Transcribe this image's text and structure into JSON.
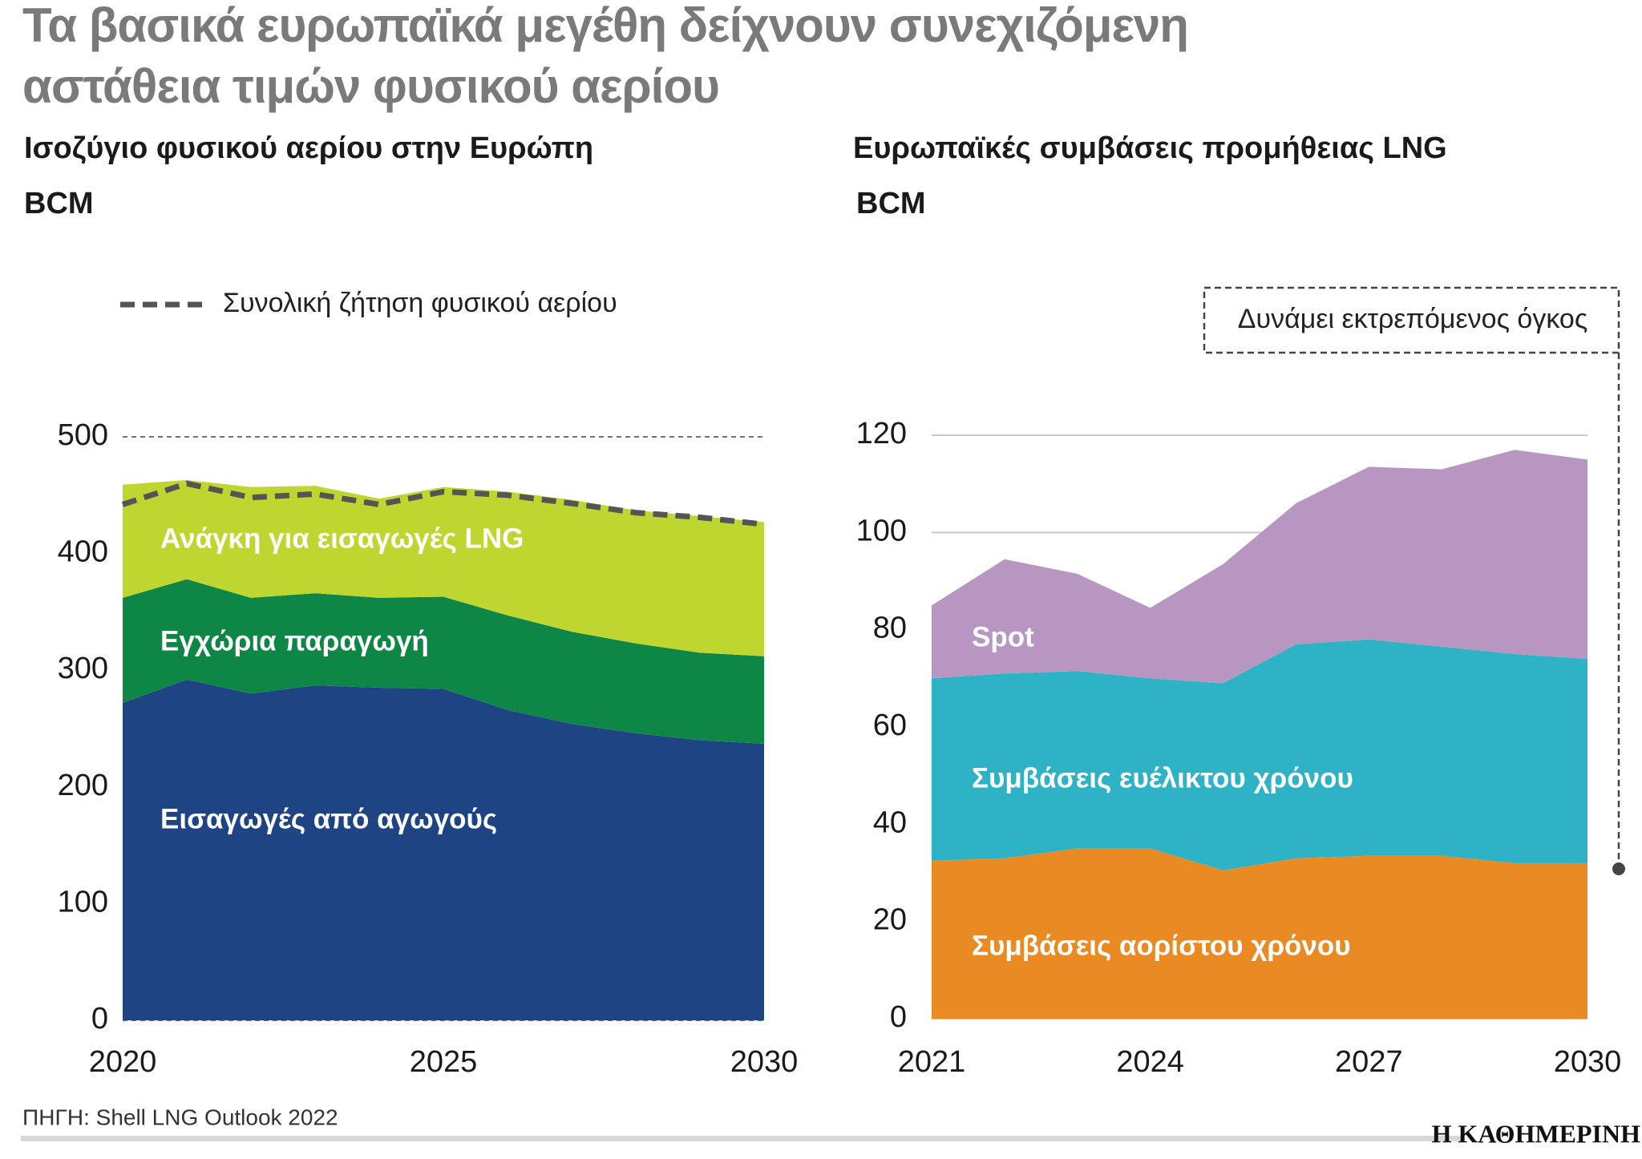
{
  "title": "Τα βασικά ευρωπαϊκά μεγέθη δείχνουν συνεχιζόμενη αστάθεια τιμών φυσικού αερίου",
  "source": "ΠΗΓΗ: Shell LNG Outlook 2022",
  "logo": "Η ΚΑΘΗΜΕΡΙΝΗ",
  "chart_data": [
    {
      "type": "area",
      "stacked": true,
      "title": "Ισοζύγιο φυσικού αερίου στην Ευρώπη",
      "y_label": "BCM",
      "x": [
        2020,
        2021,
        2022,
        2023,
        2024,
        2025,
        2026,
        2027,
        2028,
        2029,
        2030
      ],
      "xlim": [
        2020,
        2030
      ],
      "xticks": [
        2020,
        2025,
        2030
      ],
      "ylim": [
        0,
        500
      ],
      "yticks": [
        0,
        100,
        200,
        300,
        400,
        500
      ],
      "grid": true,
      "grid_style": "dashed",
      "series": [
        {
          "name": "Εισαγωγές από αγωγούς",
          "color": "#1f4484",
          "values": [
            272,
            292,
            280,
            287,
            285,
            284,
            266,
            254,
            246,
            240,
            237
          ]
        },
        {
          "name": "Εγχώρια παραγωγή",
          "color": "#0e8746",
          "values": [
            90,
            86,
            82,
            79,
            77,
            79,
            81,
            79,
            77,
            75,
            75
          ]
        },
        {
          "name": "Ανάγκη για εισαγωγές LNG",
          "color": "#bfd630",
          "values": [
            97,
            85,
            95,
            92,
            85,
            94,
            106,
            113,
            114,
            117,
            115
          ]
        },
        {
          "name": "Συνολική ζήτηση φυσικού αερίου",
          "type": "line",
          "dashed": true,
          "color": "#555555",
          "values": [
            442,
            460,
            448,
            451,
            442,
            453,
            450,
            443,
            435,
            431,
            425
          ]
        }
      ]
    },
    {
      "type": "area",
      "stacked": true,
      "title": "Ευρωπαϊκές συμβάσεις προμήθειας LNG",
      "y_label": "BCM",
      "annotation": "Δυνάμει εκτρεπόμενος όγκος",
      "x": [
        2021,
        2022,
        2023,
        2024,
        2025,
        2026,
        2027,
        2028,
        2029,
        2030
      ],
      "xlim": [
        2021,
        2030
      ],
      "xticks": [
        2021,
        2024,
        2027,
        2030
      ],
      "ylim": [
        0,
        120
      ],
      "yticks": [
        0,
        20,
        40,
        60,
        80,
        100,
        120
      ],
      "grid": true,
      "grid_style": "solid",
      "series": [
        {
          "name": "Συμβάσεις αορίστου χρόνου",
          "color": "#ea8a23",
          "values": [
            32.5,
            33,
            35,
            35,
            30.5,
            33,
            33.5,
            33.5,
            32,
            32
          ]
        },
        {
          "name": "Συμβάσεις ευέλικτου χρόνου",
          "color": "#2db2c6",
          "values": [
            37.5,
            38,
            36.5,
            35,
            38.5,
            44,
            44.5,
            43,
            43,
            42
          ]
        },
        {
          "name": "Spot",
          "color": "#b896c2",
          "values": [
            15,
            23.5,
            20,
            14.5,
            24.5,
            29,
            35.5,
            36.5,
            42,
            41
          ]
        }
      ]
    }
  ]
}
